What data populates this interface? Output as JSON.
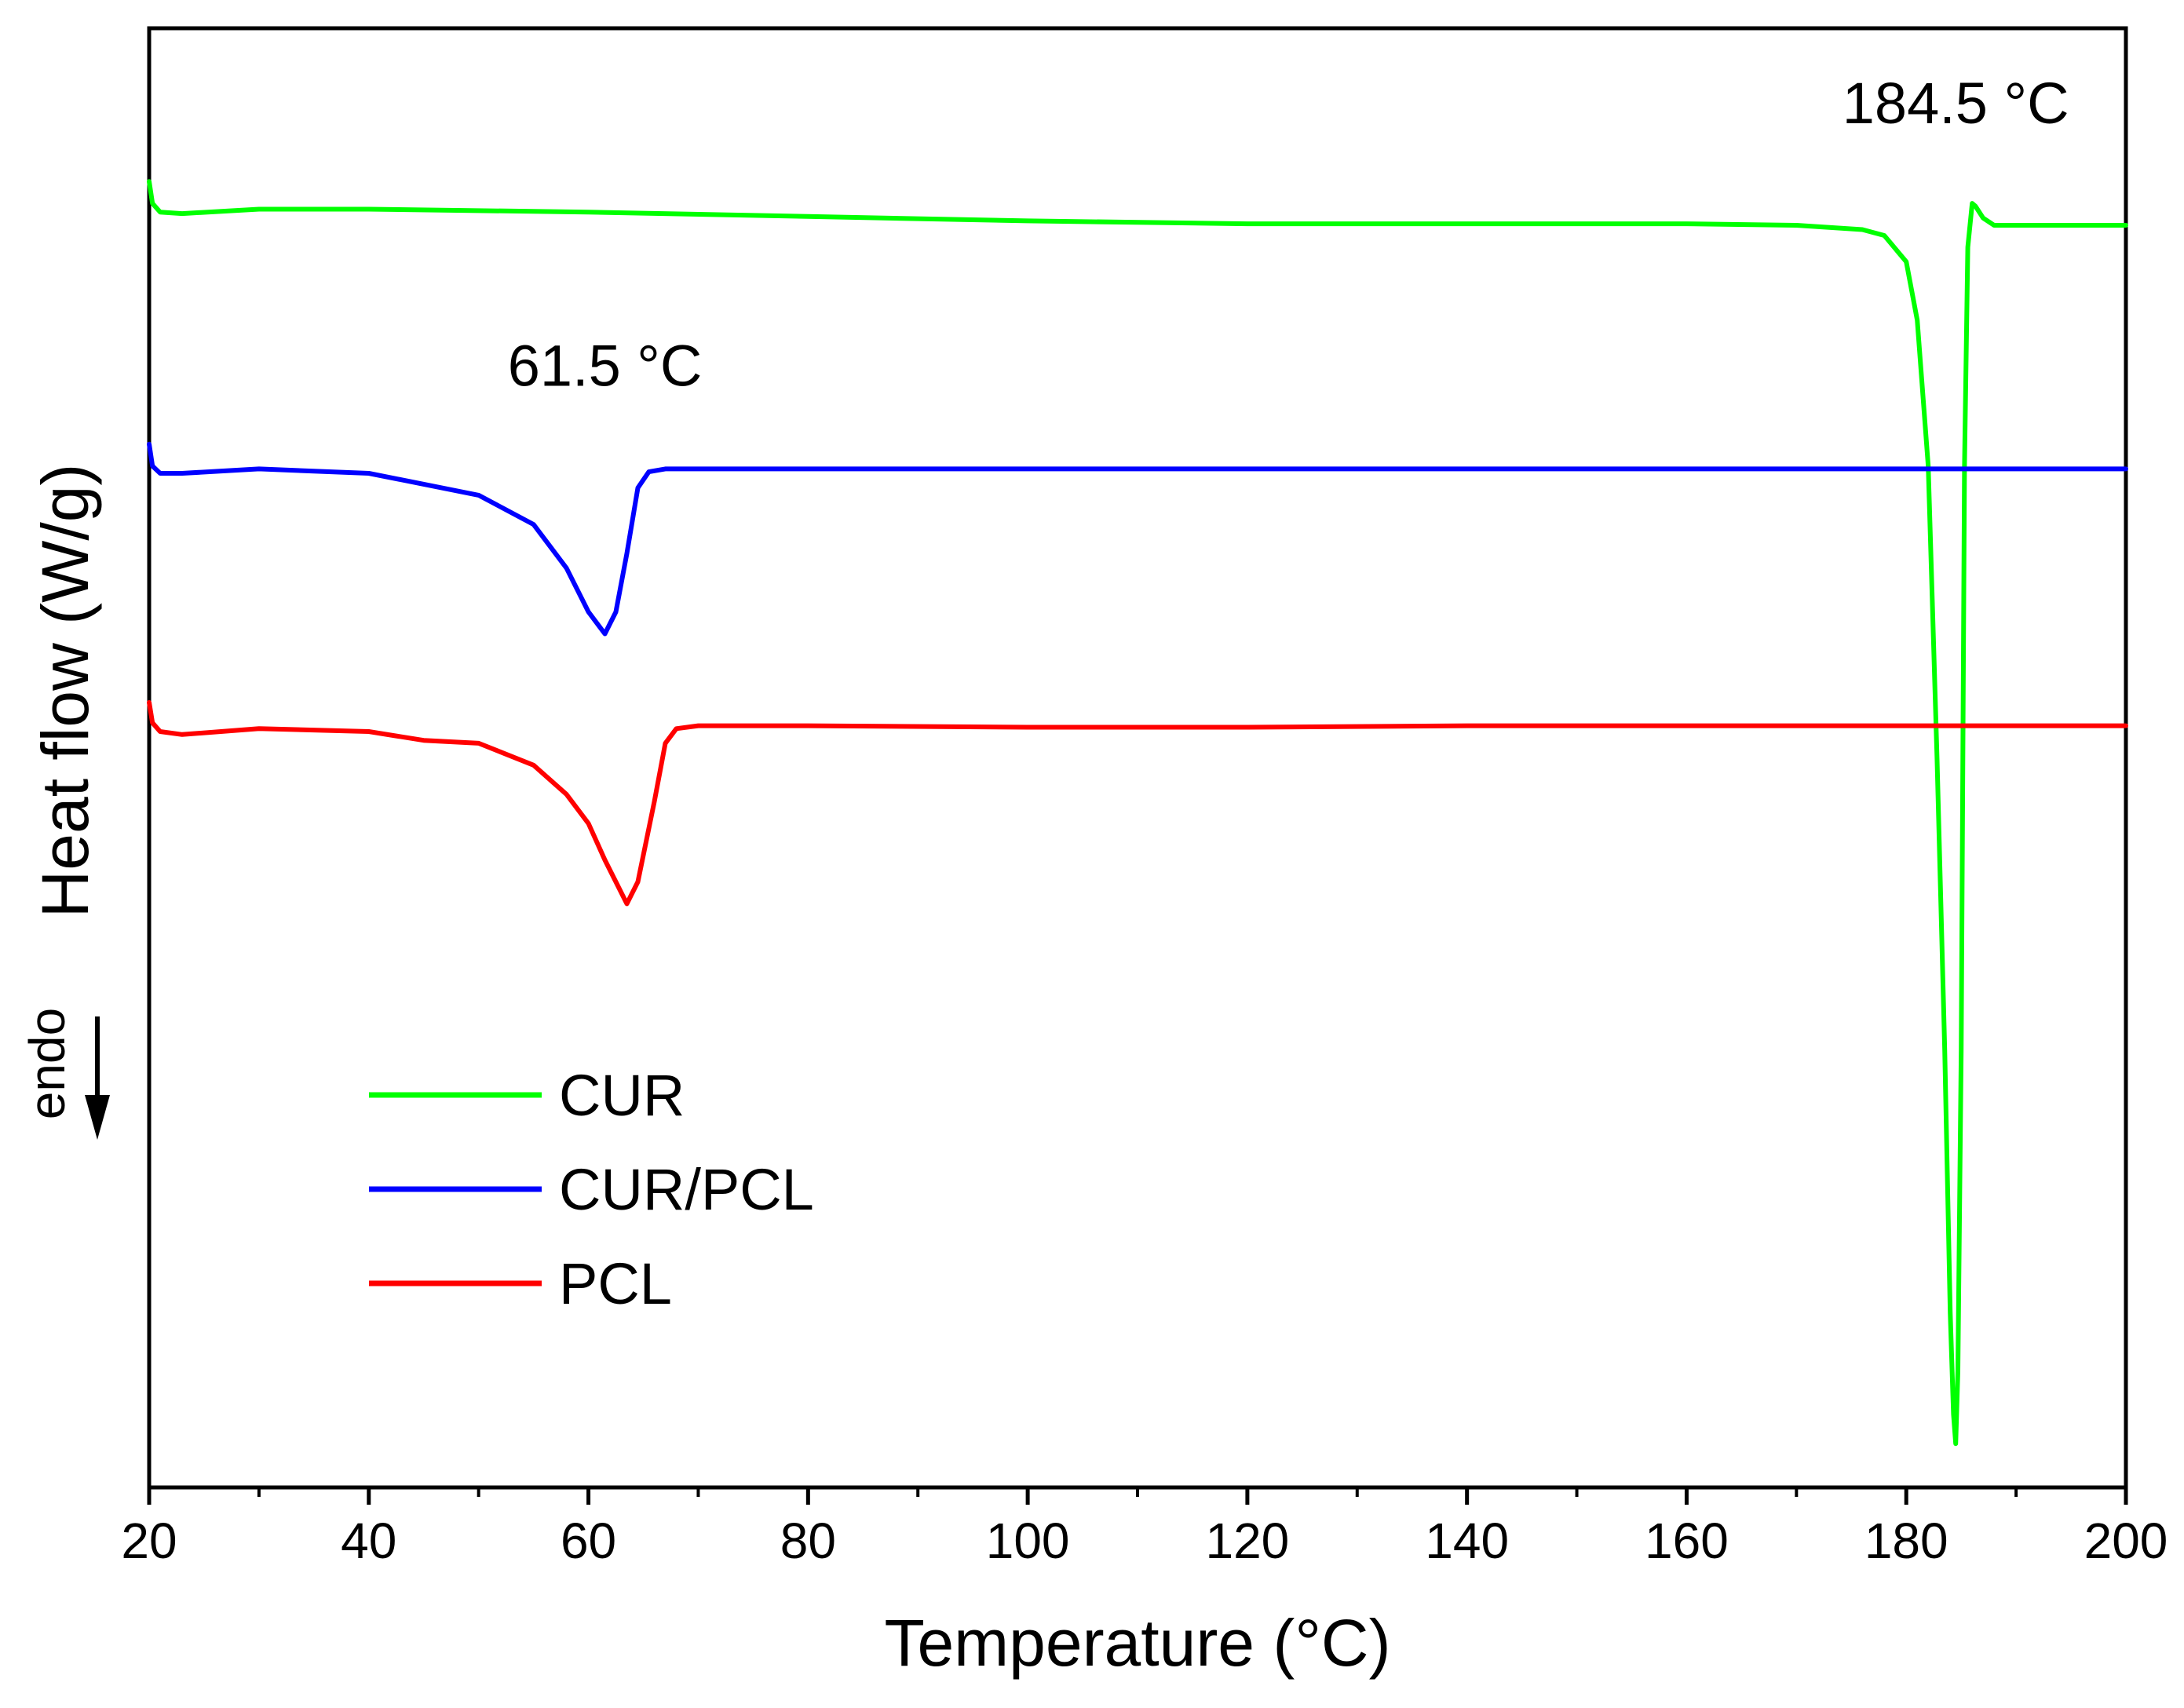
{
  "chart_data": {
    "type": "line",
    "title": "",
    "xlabel": "Temperature (°C)",
    "ylabel": "Heat flow (W/g)",
    "xlim": [
      20,
      200
    ],
    "ylim": [
      0,
      100
    ],
    "x_ticks": [
      20,
      40,
      60,
      80,
      100,
      120,
      140,
      160,
      180,
      200
    ],
    "x_tick_labels": [
      "20",
      "40",
      "60",
      "80",
      "100",
      "120",
      "140",
      "160",
      "180",
      "200"
    ],
    "y_ticks_shown": false,
    "endo_label": "endo",
    "legend_position": "bottom-left",
    "annotations": [
      {
        "text": "184.5 °C",
        "x": 184.5,
        "y": 93.5
      },
      {
        "text": "61.5 °C",
        "x": 61.5,
        "y": 75.5
      }
    ],
    "series": [
      {
        "name": "CUR",
        "color": "#00ff00",
        "x": [
          20,
          20.3,
          21,
          23,
          30,
          40,
          60,
          80,
          100,
          120,
          140,
          160,
          170,
          176,
          178,
          180,
          181,
          182,
          182.8,
          183.5,
          184,
          184.3,
          184.5,
          184.7,
          185,
          185.3,
          185.6,
          186,
          186.3,
          187,
          188,
          190,
          195,
          200
        ],
        "values": [
          89.5,
          88.0,
          87.4,
          87.3,
          87.6,
          87.6,
          87.4,
          87.1,
          86.8,
          86.6,
          86.6,
          86.6,
          86.5,
          86.2,
          85.8,
          84.0,
          80.0,
          70.0,
          50.0,
          30.0,
          12.0,
          5.0,
          3.0,
          8.0,
          30.0,
          70.0,
          85.0,
          88.0,
          87.8,
          87.0,
          86.5,
          86.5,
          86.5,
          86.5
        ]
      },
      {
        "name": "CUR/PCL",
        "color": "#0000ff",
        "x": [
          20,
          20.3,
          21,
          23,
          30,
          40,
          50,
          55,
          58,
          60,
          61.5,
          62.5,
          63.5,
          64.5,
          65.5,
          67,
          70,
          80,
          100,
          120,
          140,
          160,
          180,
          200
        ],
        "values": [
          71.5,
          70.0,
          69.5,
          69.5,
          69.8,
          69.5,
          68.0,
          66.0,
          63.0,
          60.0,
          58.5,
          60.0,
          64.0,
          68.5,
          69.6,
          69.8,
          69.8,
          69.8,
          69.8,
          69.8,
          69.8,
          69.8,
          69.8,
          69.8
        ]
      },
      {
        "name": "PCL",
        "color": "#ff0000",
        "x": [
          20,
          20.3,
          21,
          23,
          30,
          40,
          45,
          50,
          55,
          58,
          60,
          61.5,
          62.5,
          63.5,
          64.5,
          66,
          67,
          68,
          70,
          80,
          100,
          120,
          140,
          160,
          180,
          200
        ],
        "values": [
          53.8,
          52.4,
          51.8,
          51.6,
          52.0,
          51.8,
          51.2,
          51.0,
          49.5,
          47.5,
          45.5,
          43.0,
          41.5,
          40.0,
          41.5,
          47.0,
          51.0,
          52.0,
          52.2,
          52.2,
          52.1,
          52.1,
          52.2,
          52.2,
          52.2,
          52.2
        ]
      }
    ]
  }
}
